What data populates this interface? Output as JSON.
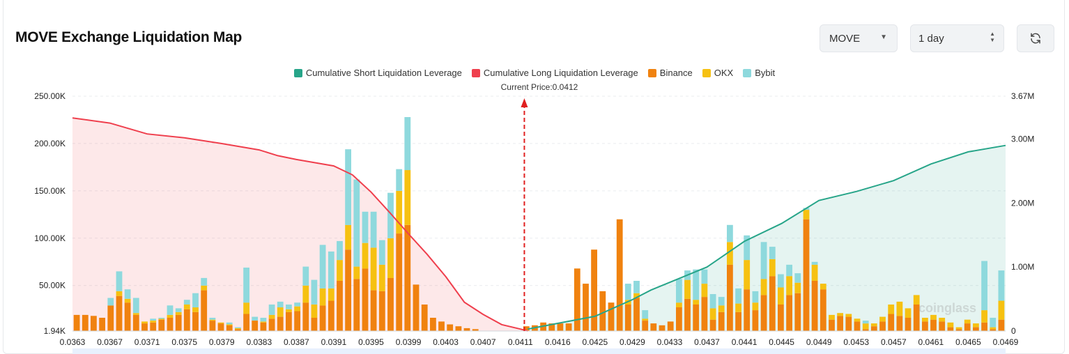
{
  "header": {
    "title": "MOVE Exchange Liquidation Map",
    "coin_select": "MOVE",
    "range_select": "1 day",
    "refresh_icon": "refresh-icon"
  },
  "watermark": "coinglass",
  "chart_data": {
    "type": "bar",
    "title": "MOVE Exchange Liquidation Map",
    "current_price_label": "Current Price:0.0412",
    "current_price": 0.0412,
    "legend": [
      {
        "name": "Cumulative Short Liquidation Leverage",
        "color": "#27a589"
      },
      {
        "name": "Cumulative Long Liquidation Leverage",
        "color": "#ef3f4d"
      },
      {
        "name": "Binance",
        "color": "#f0820f"
      },
      {
        "name": "OKX",
        "color": "#f6c111"
      },
      {
        "name": "Bybit",
        "color": "#8ed9dd"
      }
    ],
    "x_tick_labels": [
      "0.0363",
      "0.0367",
      "0.0371",
      "0.0375",
      "0.0379",
      "0.0383",
      "0.0387",
      "0.0391",
      "0.0395",
      "0.0399",
      "0.0403",
      "0.0407",
      "0.0411",
      "0.0416",
      "0.0425",
      "0.0429",
      "0.0433",
      "0.0437",
      "0.0441",
      "0.0445",
      "0.0449",
      "0.0453",
      "0.0457",
      "0.0461",
      "0.0465",
      "0.0469"
    ],
    "y_left_ticks": [
      "1.94K",
      "50.00K",
      "100.00K",
      "150.00K",
      "200.00K",
      "250.00K"
    ],
    "y_left_values": [
      1940,
      50000,
      100000,
      150000,
      200000,
      250000
    ],
    "y_left_range": [
      1940,
      250000
    ],
    "y_right_ticks": [
      "0",
      "1.00M",
      "2.00M",
      "3.00M",
      "3.67M"
    ],
    "y_right_values": [
      0,
      1000000,
      2000000,
      3000000,
      3670000
    ],
    "y_right_range": [
      0,
      3670000
    ],
    "series": [
      {
        "name": "Binance",
        "values": [
          17000,
          17000,
          16000,
          14000,
          27000,
          37000,
          30000,
          17000,
          8000,
          9000,
          12000,
          14000,
          17000,
          23000,
          20000,
          43000,
          11000,
          8000,
          6000,
          2000,
          18000,
          11000,
          9000,
          13000,
          15000,
          20000,
          21000,
          30000,
          14000,
          27000,
          32000,
          53000,
          86000,
          55000,
          66000,
          43000,
          42000,
          56000,
          103000,
          112000,
          49000,
          28000,
          14000,
          10000,
          7000,
          5000,
          3000,
          2000,
          0,
          0,
          0,
          0,
          0,
          5000,
          6000,
          9000,
          8000,
          8000,
          8000,
          66000,
          50000,
          86000,
          42000,
          30000,
          118000,
          28000,
          35000,
          11000,
          8000,
          6000,
          10000,
          25000,
          34000,
          28000,
          36000,
          12000,
          20000,
          70000,
          20000,
          44000,
          22000,
          38000,
          58000,
          28000,
          38000,
          40000,
          118000,
          53000,
          44000,
          12000,
          16000,
          15000,
          10000,
          2000,
          5000,
          10000,
          18000,
          16000,
          14000,
          28000,
          10000,
          12000,
          10000,
          4000,
          2000,
          8000,
          4000,
          9000,
          2000,
          12000
        ]
      },
      {
        "name": "OKX",
        "values": [
          0,
          0,
          0,
          0,
          0,
          5000,
          4000,
          2000,
          2000,
          2000,
          1000,
          3000,
          3000,
          5000,
          5000,
          5000,
          1000,
          1000,
          1000,
          1000,
          12000,
          0,
          1000,
          4000,
          10000,
          3000,
          5000,
          18000,
          14000,
          18000,
          13000,
          22000,
          26000,
          13000,
          27000,
          45000,
          28000,
          42000,
          45000,
          58000,
          0,
          0,
          0,
          0,
          0,
          0,
          0,
          0,
          0,
          0,
          0,
          0,
          0,
          0,
          0,
          0,
          0,
          0,
          0,
          0,
          0,
          0,
          0,
          0,
          0,
          5000,
          5000,
          2000,
          0,
          0,
          0,
          5000,
          20000,
          5000,
          14000,
          12000,
          7000,
          24000,
          9000,
          31000,
          8000,
          17000,
          18000,
          18000,
          20000,
          11000,
          10000,
          17000,
          6000,
          5000,
          3000,
          3000,
          3000,
          6000,
          3000,
          5000,
          10000,
          15000,
          10000,
          10000,
          4000,
          5000,
          4000,
          5000,
          2000,
          4000,
          4000,
          13000,
          2000,
          20000
        ]
      },
      {
        "name": "Bybit",
        "values": [
          0,
          0,
          0,
          0,
          8000,
          21000,
          10000,
          16000,
          0,
          2000,
          1000,
          10000,
          4000,
          5000,
          15000,
          8000,
          2000,
          0,
          2000,
          1000,
          37000,
          4000,
          4000,
          11000,
          6000,
          5000,
          4000,
          20000,
          26000,
          46000,
          39000,
          20000,
          80000,
          92000,
          33000,
          38000,
          26000,
          48000,
          23000,
          56000,
          0,
          0,
          0,
          0,
          0,
          0,
          0,
          0,
          0,
          0,
          0,
          0,
          0,
          0,
          0,
          0,
          0,
          0,
          0,
          0,
          0,
          0,
          0,
          0,
          0,
          17000,
          13000,
          9000,
          0,
          0,
          0,
          25000,
          10000,
          32000,
          15000,
          15000,
          9000,
          18000,
          16000,
          26000,
          12000,
          39000,
          13000,
          14000,
          12000,
          10000,
          2000,
          3000,
          0,
          0,
          0,
          0,
          0,
          3000,
          0,
          0,
          0,
          0,
          0,
          0,
          0,
          0,
          0,
          0,
          0,
          0,
          0,
          52000,
          10000,
          32000
        ]
      },
      {
        "name": "Cumulative Long Liquidation Leverage",
        "x": [
          0.0363,
          0.0367,
          0.0371,
          0.0375,
          0.0379,
          0.0383,
          0.0385,
          0.0387,
          0.0391,
          0.0393,
          0.0395,
          0.0397,
          0.0399,
          0.0401,
          0.0403,
          0.0405,
          0.0407,
          0.0409,
          0.0411,
          0.0412
        ],
        "values": [
          3330000,
          3250000,
          3080000,
          3020000,
          2930000,
          2830000,
          2740000,
          2680000,
          2580000,
          2440000,
          2170000,
          1850000,
          1520000,
          1200000,
          850000,
          450000,
          260000,
          100000,
          30000,
          0
        ]
      },
      {
        "name": "Cumulative Short Liquidation Leverage",
        "x": [
          0.0412,
          0.0416,
          0.0425,
          0.0429,
          0.0431,
          0.0433,
          0.0437,
          0.0441,
          0.0445,
          0.0449,
          0.0453,
          0.0457,
          0.0461,
          0.0465,
          0.0469
        ],
        "values": [
          30000,
          120000,
          230000,
          490000,
          640000,
          760000,
          1000000,
          1400000,
          1680000,
          2040000,
          2180000,
          2350000,
          2610000,
          2800000,
          2900000
        ]
      }
    ]
  }
}
